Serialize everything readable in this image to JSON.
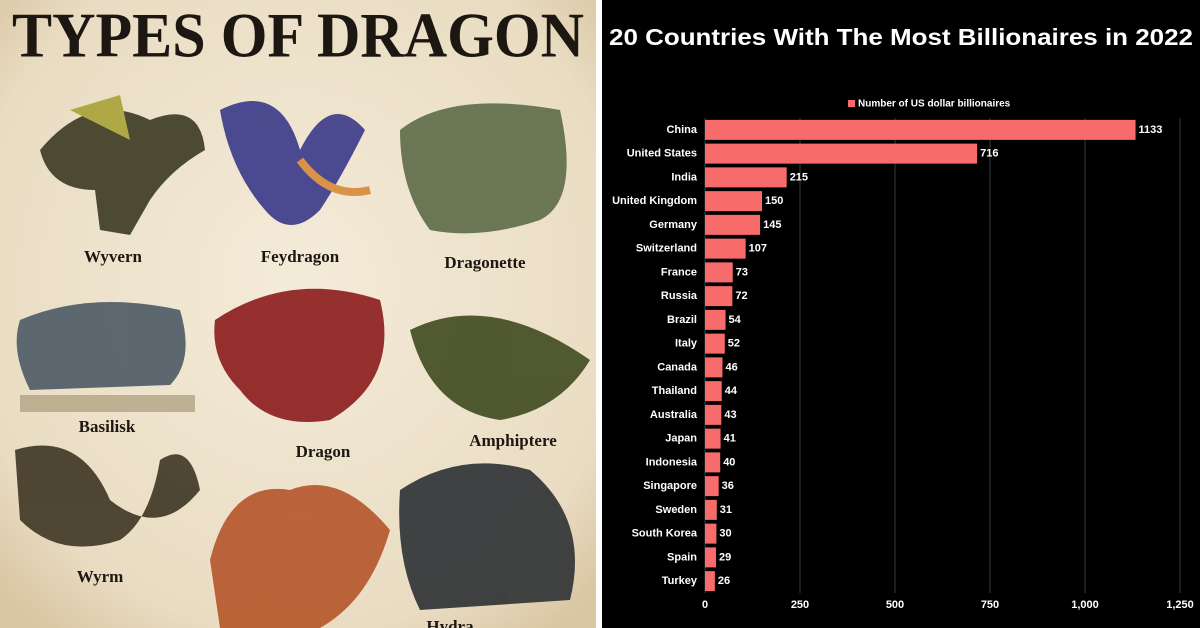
{
  "poster": {
    "title": "TYPES OF DRAGON",
    "labels": [
      "Wyvern",
      "Feydragon",
      "Dragonette",
      "Basilisk",
      "Dragon",
      "Amphiptere",
      "Wyrm",
      "Hydra"
    ]
  },
  "chart_data": {
    "type": "bar",
    "orientation": "horizontal",
    "title": "20 Countries With The Most Billionaires in 2022",
    "categories": [
      "China",
      "United States",
      "India",
      "United Kingdom",
      "Germany",
      "Switzerland",
      "France",
      "Russia",
      "Brazil",
      "Italy",
      "Canada",
      "Thailand",
      "Australia",
      "Japan",
      "Indonesia",
      "Singapore",
      "Sweden",
      "South Korea",
      "Spain",
      "Turkey"
    ],
    "series": [
      {
        "name": "Number of US dollar billionaires",
        "color": "#f76b6b",
        "values": [
          1133,
          716,
          215,
          150,
          145,
          107,
          73,
          72,
          54,
          52,
          46,
          44,
          43,
          41,
          40,
          36,
          31,
          30,
          29,
          26
        ]
      }
    ],
    "xlim": [
      0,
      1250
    ],
    "xticks": [
      0,
      250,
      500,
      750,
      {
        "value": 1000,
        "label": "1,000"
      },
      {
        "value": 1250,
        "label": "1,250"
      }
    ],
    "grid": true,
    "legend": "top"
  }
}
